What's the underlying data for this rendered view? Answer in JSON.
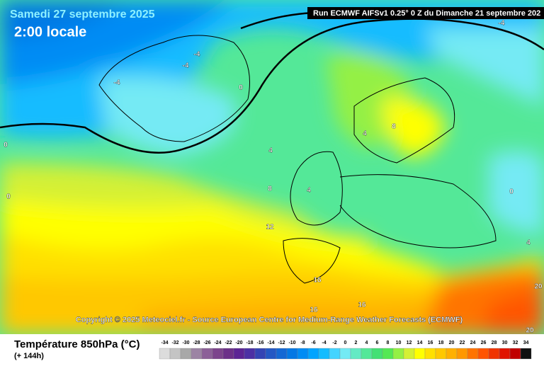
{
  "header": {
    "date": "Samedi 27 septembre 2025",
    "time": "2:00 locale",
    "run": "Run ECMWF AIFSv1 0.25° 0 Z du Dimanche 21 septembre 202"
  },
  "copyright": "Copyright © 2025 Meteociel.fr - Source European Centre for Medium-Range Weather Forecasts (ECMWF)",
  "legend": {
    "title": "Température 850hPa (°C)",
    "lead": "(+ 144h)",
    "ticks": [
      -34,
      -32,
      -30,
      -28,
      -26,
      -24,
      -22,
      -20,
      -18,
      -16,
      -14,
      -12,
      -10,
      -8,
      -6,
      -4,
      -2,
      0,
      2,
      4,
      6,
      8,
      10,
      12,
      14,
      16,
      18,
      20,
      22,
      24,
      26,
      28,
      30,
      32,
      34
    ],
    "colors": [
      "#dcdcdc",
      "#c4c4c4",
      "#a8a8a8",
      "#9c84a4",
      "#8c6098",
      "#7c448c",
      "#6c3088",
      "#5c2494",
      "#4c30a4",
      "#3444b4",
      "#2458c4",
      "#1468d4",
      "#0478e4",
      "#008cf4",
      "#00a4ff",
      "#14bcff",
      "#44d4ff",
      "#74eaf4",
      "#64eac4",
      "#54e898",
      "#44e074",
      "#54e854",
      "#94f044",
      "#d4f034",
      "#ffff00",
      "#ffe000",
      "#ffc800",
      "#ffb000",
      "#ff9800",
      "#ff7400",
      "#ff5400",
      "#f03400",
      "#e01400",
      "#c00000",
      "#101010"
    ]
  },
  "contour_labels": [
    -4,
    -4,
    -4,
    -4,
    0,
    0,
    0,
    0,
    4,
    4,
    4,
    4,
    8,
    8,
    12,
    16,
    16,
    16,
    20,
    20
  ]
}
